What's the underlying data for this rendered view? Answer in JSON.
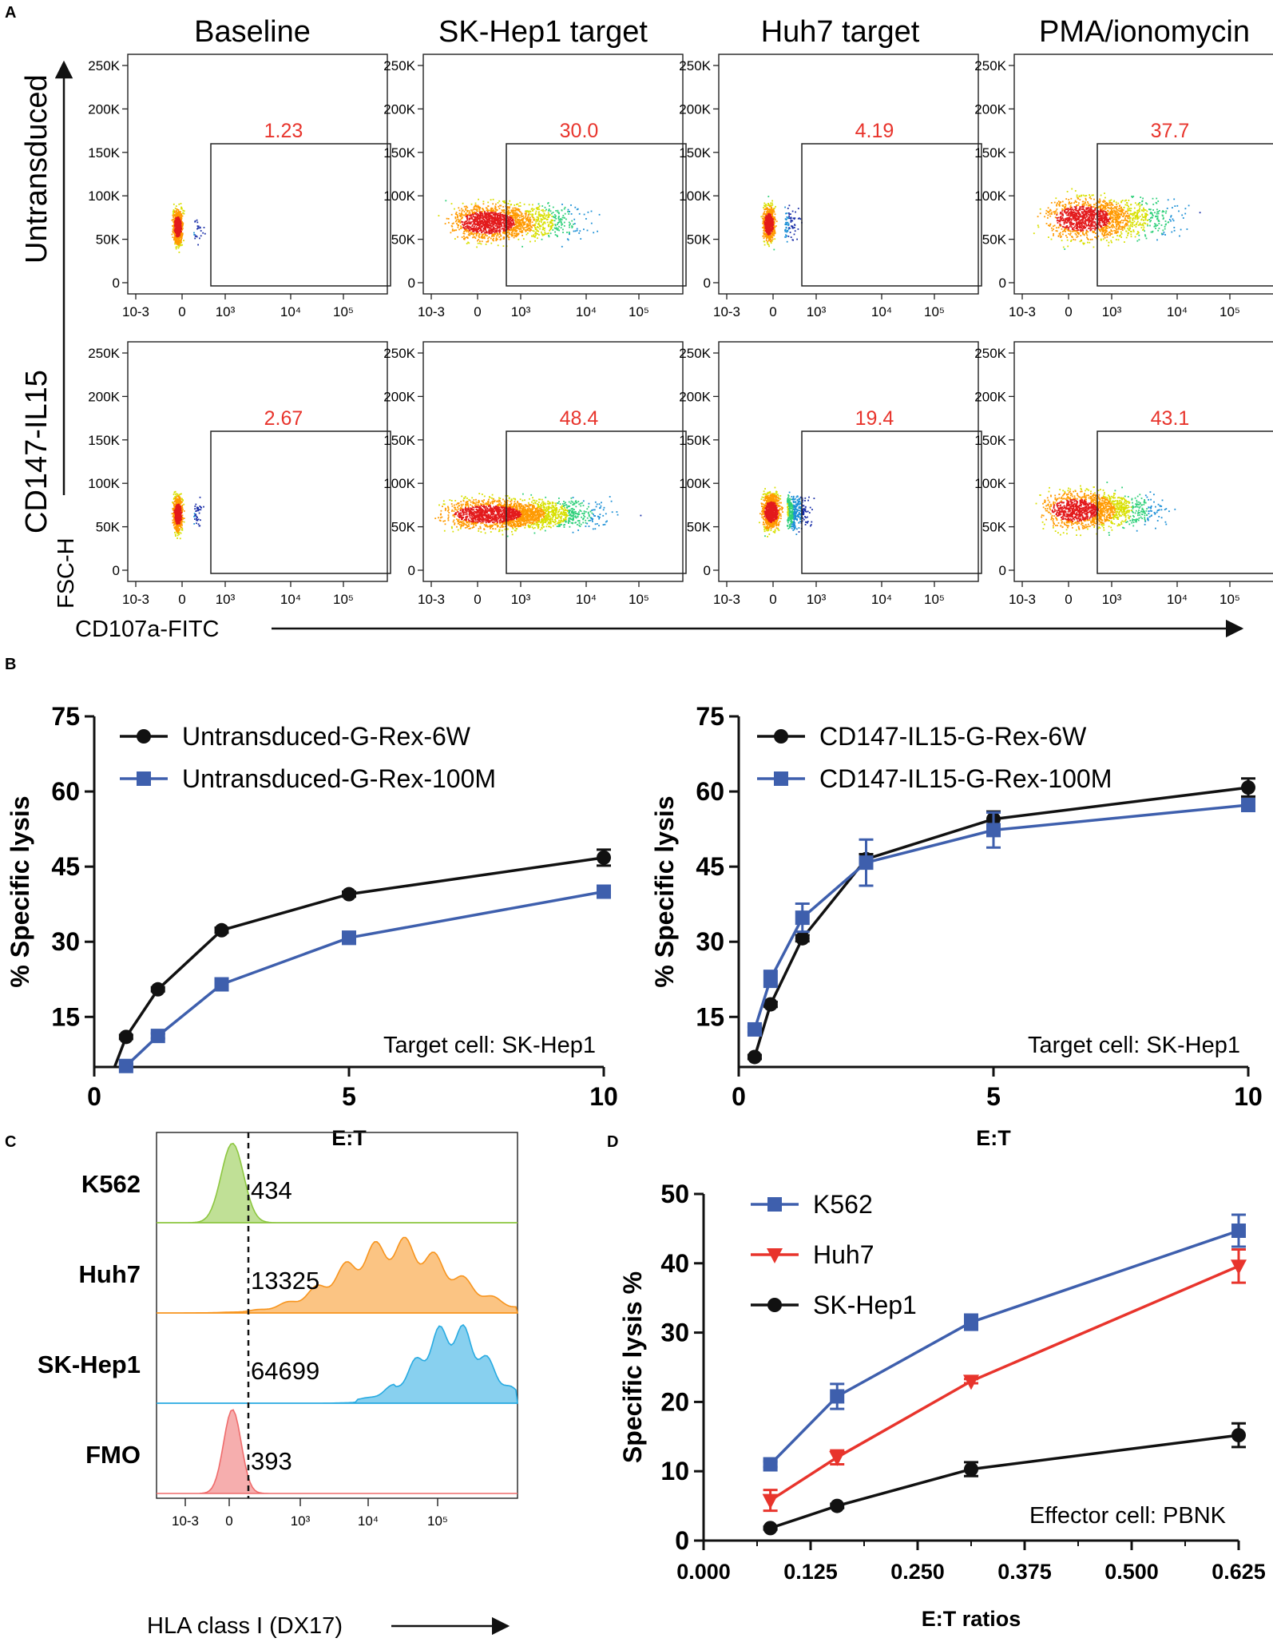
{
  "panel_labels": {
    "a": "A",
    "b": "B",
    "c": "C",
    "d": "D"
  },
  "colors": {
    "black": "#111111",
    "blue": "#3e5fad",
    "red": "#e8342c",
    "gate": "#e8342c"
  },
  "chart_data": [
    {
      "id": "A",
      "type": "scatter",
      "description_kind": "flow-cytometry density plots",
      "columns": [
        "Baseline",
        "SK-Hep1 target",
        "Huh7 target",
        "PMA/ionomycin"
      ],
      "rows": [
        "Untransduced",
        "CD147-IL15"
      ],
      "y_ticks": [
        "250K",
        "200K",
        "150K",
        "100K",
        "50K",
        "0"
      ],
      "x_ticks": [
        "10-3",
        "0",
        "10³",
        "10⁴",
        "10⁵"
      ],
      "gates": [
        [
          "1.23",
          "30.0",
          "4.19",
          "37.7"
        ],
        [
          "2.67",
          "48.4",
          "19.4",
          "43.1"
        ]
      ],
      "ylabel": "FSC-H",
      "xlabel": "CD107a-FITC"
    },
    {
      "id": "B-left",
      "type": "line",
      "xlabel": "E:T",
      "ylabel": "% Specific lysis",
      "xlim": [
        0,
        10
      ],
      "ylim": [
        5,
        75
      ],
      "x_ticks": [
        "0",
        "5",
        "10"
      ],
      "y_ticks": [
        "15",
        "30",
        "45",
        "60",
        "75"
      ],
      "annotation": "Target cell: SK-Hep1",
      "series": [
        {
          "name": "Untransduced-G-Rex-6W",
          "color": "#111111",
          "marker": "circle",
          "x": [
            0.625,
            1.25,
            2.5,
            5,
            10
          ],
          "values": [
            11,
            20.5,
            32.3,
            39.5,
            46.8
          ],
          "err": [
            0.4,
            0.4,
            0.5,
            0.5,
            1.6
          ]
        },
        {
          "name": "Untransduced-G-Rex-100M",
          "color": "#3e5fad",
          "marker": "square",
          "x": [
            0.625,
            1.25,
            2.5,
            5,
            10
          ],
          "values": [
            5.2,
            11.2,
            21.5,
            30.8,
            40.0
          ],
          "err": [
            0.4,
            0.5,
            0.5,
            1.2,
            0.5
          ]
        }
      ]
    },
    {
      "id": "B-right",
      "type": "line",
      "xlabel": "E:T",
      "ylabel": "% Specific lysis",
      "xlim": [
        0,
        10
      ],
      "ylim": [
        5,
        75
      ],
      "x_ticks": [
        "0",
        "5",
        "10"
      ],
      "y_ticks": [
        "15",
        "30",
        "45",
        "60",
        "75"
      ],
      "annotation": "Target cell: SK-Hep1",
      "series": [
        {
          "name": "CD147-IL15-G-Rex-6W",
          "color": "#111111",
          "marker": "circle",
          "x": [
            0.3125,
            0.625,
            1.25,
            2.5,
            5,
            10
          ],
          "values": [
            7.0,
            17.5,
            30.7,
            46.5,
            54.5,
            60.8
          ],
          "err": [
            0.4,
            0.5,
            0.6,
            1.0,
            1.5,
            1.8
          ]
        },
        {
          "name": "CD147-IL15-G-Rex-100M",
          "color": "#3e5fad",
          "marker": "square",
          "x": [
            0.3125,
            0.625,
            1.25,
            2.5,
            5,
            10
          ],
          "values": [
            12.5,
            22.6,
            34.8,
            45.8,
            52.3,
            57.3
          ],
          "err": [
            0.5,
            1.6,
            2.8,
            4.6,
            3.5,
            0.9
          ]
        }
      ]
    },
    {
      "id": "C",
      "type": "area",
      "description_kind": "histogram overlay",
      "xlabel": "HLA class I (DX17)",
      "x_ticks": [
        "10-3",
        "0",
        "10³",
        "10⁴",
        "10⁵"
      ],
      "rows": [
        {
          "label": "K562",
          "value": "434",
          "color": "#8cc63f"
        },
        {
          "label": "Huh7",
          "value": "13325",
          "color": "#f7941d"
        },
        {
          "label": "SK-Hep1",
          "value": "64699",
          "color": "#27aae1"
        },
        {
          "label": "FMO",
          "value": "393",
          "color": "#ef6b6b"
        }
      ]
    },
    {
      "id": "D",
      "type": "line",
      "xlabel": "E:T ratios",
      "ylabel": "Specific lysis %",
      "xlim": [
        0,
        0.625
      ],
      "ylim": [
        0,
        50
      ],
      "x_ticks": [
        "0.000",
        "0.125",
        "0.250",
        "0.375",
        "0.500",
        "0.625"
      ],
      "y_ticks": [
        "0",
        "10",
        "20",
        "30",
        "40",
        "50"
      ],
      "annotation": "Effector cell: PBNK",
      "series": [
        {
          "name": "K562",
          "color": "#3e5fad",
          "marker": "square",
          "x": [
            0.078,
            0.156,
            0.3125,
            0.625
          ],
          "values": [
            11.0,
            20.8,
            31.5,
            44.7
          ],
          "err": [
            0.4,
            1.8,
            1.1,
            2.3
          ]
        },
        {
          "name": "Huh7",
          "color": "#e8342c",
          "marker": "triangle",
          "x": [
            0.078,
            0.156,
            0.3125,
            0.625
          ],
          "values": [
            5.8,
            12.0,
            23.0,
            39.6
          ],
          "err": [
            1.5,
            1.0,
            0.3,
            2.4
          ]
        },
        {
          "name": "SK-Hep1",
          "color": "#111111",
          "marker": "circle",
          "x": [
            0.078,
            0.156,
            0.3125,
            0.625
          ],
          "values": [
            1.8,
            5.0,
            10.3,
            15.2
          ],
          "err": [
            0.2,
            0.3,
            1.0,
            1.7
          ]
        }
      ]
    }
  ]
}
